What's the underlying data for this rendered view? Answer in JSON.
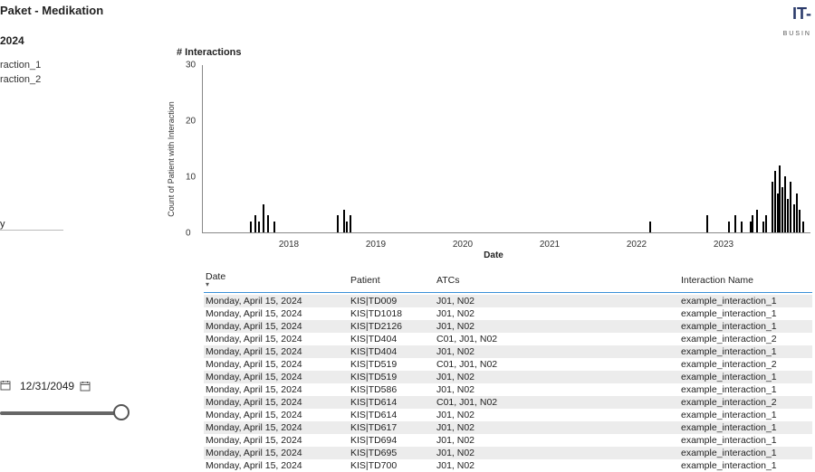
{
  "header": {
    "title": "Paket - Medikation",
    "subheader": "2024",
    "logo_main": "IT-",
    "logo_sub": "BUSIN"
  },
  "left_panel": {
    "items": [
      "raction_1",
      "raction_2"
    ],
    "mid_label": "y",
    "date_value": "12/31/2049"
  },
  "chart": {
    "type": "bar",
    "title": "# Interactions",
    "yaxis_label": "Count of Patient with Interaction",
    "xaxis_label": "Date",
    "ylim": [
      0,
      30
    ],
    "yticks": [
      0,
      10,
      20,
      30
    ],
    "xlim": [
      2017,
      2024
    ],
    "xticks": [
      2018,
      2019,
      2020,
      2021,
      2022,
      2023
    ],
    "bar_color": "#000000",
    "axis_color": "#888888",
    "background_color": "#ffffff",
    "bars": [
      {
        "x": 2017.55,
        "y": 2
      },
      {
        "x": 2017.6,
        "y": 3
      },
      {
        "x": 2017.65,
        "y": 2
      },
      {
        "x": 2017.7,
        "y": 5
      },
      {
        "x": 2017.75,
        "y": 3
      },
      {
        "x": 2017.82,
        "y": 2
      },
      {
        "x": 2018.55,
        "y": 3
      },
      {
        "x": 2018.62,
        "y": 4
      },
      {
        "x": 2018.66,
        "y": 2
      },
      {
        "x": 2018.7,
        "y": 3
      },
      {
        "x": 2022.15,
        "y": 2
      },
      {
        "x": 2022.8,
        "y": 3
      },
      {
        "x": 2023.05,
        "y": 2
      },
      {
        "x": 2023.12,
        "y": 3
      },
      {
        "x": 2023.2,
        "y": 2
      },
      {
        "x": 2023.3,
        "y": 2
      },
      {
        "x": 2023.32,
        "y": 3
      },
      {
        "x": 2023.38,
        "y": 4
      },
      {
        "x": 2023.45,
        "y": 2
      },
      {
        "x": 2023.48,
        "y": 3
      },
      {
        "x": 2023.55,
        "y": 9
      },
      {
        "x": 2023.58,
        "y": 11
      },
      {
        "x": 2023.61,
        "y": 7
      },
      {
        "x": 2023.64,
        "y": 12
      },
      {
        "x": 2023.67,
        "y": 8
      },
      {
        "x": 2023.7,
        "y": 10
      },
      {
        "x": 2023.73,
        "y": 6
      },
      {
        "x": 2023.76,
        "y": 9
      },
      {
        "x": 2023.8,
        "y": 5
      },
      {
        "x": 2023.83,
        "y": 7
      },
      {
        "x": 2023.86,
        "y": 4
      },
      {
        "x": 2023.91,
        "y": 2
      }
    ]
  },
  "table": {
    "columns": [
      "Date",
      "Patient",
      "ATCs",
      "Interaction Name"
    ],
    "sort_col": 0,
    "rows": [
      [
        "Monday, April 15, 2024",
        "KIS|TD009",
        "J01, N02",
        "example_interaction_1"
      ],
      [
        "Monday, April 15, 2024",
        "KIS|TD1018",
        "J01, N02",
        "example_interaction_1"
      ],
      [
        "Monday, April 15, 2024",
        "KIS|TD2126",
        "J01, N02",
        "example_interaction_1"
      ],
      [
        "Monday, April 15, 2024",
        "KIS|TD404",
        "C01, J01, N02",
        "example_interaction_2"
      ],
      [
        "Monday, April 15, 2024",
        "KIS|TD404",
        "J01, N02",
        "example_interaction_1"
      ],
      [
        "Monday, April 15, 2024",
        "KIS|TD519",
        "C01, J01, N02",
        "example_interaction_2"
      ],
      [
        "Monday, April 15, 2024",
        "KIS|TD519",
        "J01, N02",
        "example_interaction_1"
      ],
      [
        "Monday, April 15, 2024",
        "KIS|TD586",
        "J01, N02",
        "example_interaction_1"
      ],
      [
        "Monday, April 15, 2024",
        "KIS|TD614",
        "C01, J01, N02",
        "example_interaction_2"
      ],
      [
        "Monday, April 15, 2024",
        "KIS|TD614",
        "J01, N02",
        "example_interaction_1"
      ],
      [
        "Monday, April 15, 2024",
        "KIS|TD617",
        "J01, N02",
        "example_interaction_1"
      ],
      [
        "Monday, April 15, 2024",
        "KIS|TD694",
        "J01, N02",
        "example_interaction_1"
      ],
      [
        "Monday, April 15, 2024",
        "KIS|TD695",
        "J01, N02",
        "example_interaction_1"
      ],
      [
        "Monday, April 15, 2024",
        "KIS|TD700",
        "J01, N02",
        "example_interaction_1"
      ]
    ],
    "row_alt_bg": "#ececec",
    "header_underline": "#3a90d8"
  }
}
